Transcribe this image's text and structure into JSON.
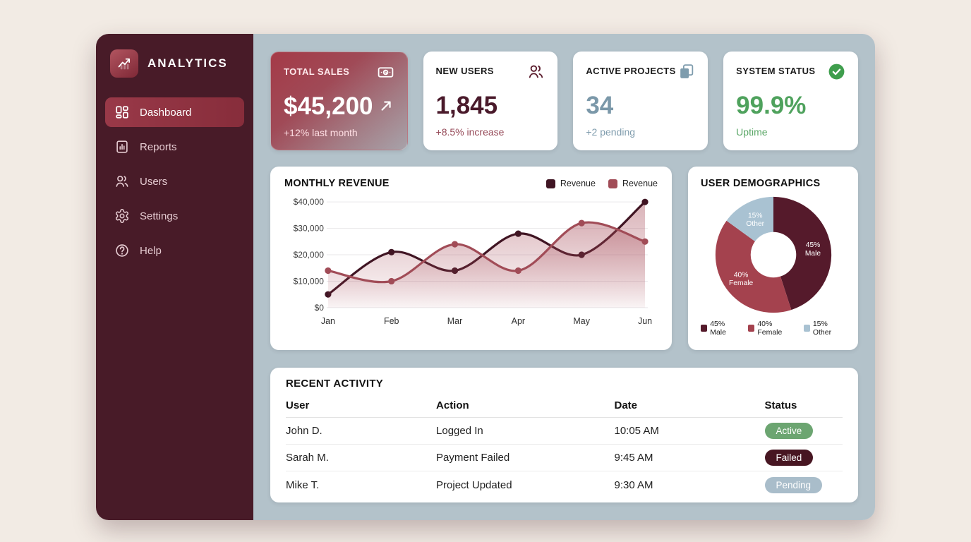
{
  "app_title": "ANALYTICS",
  "sidebar": {
    "items": [
      {
        "label": "Dashboard",
        "icon": "dashboard-icon",
        "active": true
      },
      {
        "label": "Reports",
        "icon": "reports-icon",
        "active": false
      },
      {
        "label": "Users",
        "icon": "users-icon",
        "active": false
      },
      {
        "label": "Settings",
        "icon": "settings-icon",
        "active": false
      },
      {
        "label": "Help",
        "icon": "help-icon",
        "active": false
      }
    ]
  },
  "stats": [
    {
      "title": "TOTAL SALES",
      "value": "$45,200",
      "sub": "+12% last month",
      "icon": "banknote-icon",
      "variant": "highlight",
      "trend_icon": "trend-up-icon"
    },
    {
      "title": "NEW USERS",
      "value": "1,845",
      "sub": "+8.5% increase",
      "icon": "people-icon",
      "variant": "maroon"
    },
    {
      "title": "ACTIVE PROJECTS",
      "value": "34",
      "sub": "+2 pending",
      "icon": "copy-icon",
      "variant": "steel"
    },
    {
      "title": "SYSTEM STATUS",
      "value": "99.9%",
      "sub": "Uptime",
      "icon": "check-circle-icon",
      "variant": "green"
    }
  ],
  "chart_data": [
    {
      "type": "line",
      "title": "MONTHLY REVENUE",
      "categories": [
        "Jan",
        "Feb",
        "Mar",
        "Apr",
        "May",
        "Jun"
      ],
      "series": [
        {
          "name": "Revenue",
          "color": "#401523",
          "values": [
            5000,
            21000,
            14000,
            28000,
            20000,
            40000
          ]
        },
        {
          "name": "Revenue",
          "color": "#a14c57",
          "values": [
            14000,
            10000,
            24000,
            14000,
            32000,
            25000
          ]
        }
      ],
      "ylim": [
        0,
        40000
      ],
      "yticks": [
        0,
        10000,
        20000,
        30000,
        40000
      ],
      "ytick_labels": [
        "$0",
        "$10,000",
        "$20,000",
        "$30,000",
        "$40,000"
      ],
      "xlabel": "",
      "ylabel": "",
      "grid": true,
      "area_fill": true,
      "legend_position": "top-right"
    },
    {
      "type": "pie",
      "title": "USER DEMOGRAPHICS",
      "donut": true,
      "slices": [
        {
          "label": "Male",
          "pct": 45,
          "color": "#551a2b"
        },
        {
          "label": "Female",
          "pct": 40,
          "color": "#a4424e"
        },
        {
          "label": "Other",
          "pct": 15,
          "color": "#a9c2d2"
        }
      ],
      "legend": [
        "45% Male",
        "40% Female",
        "15% Other"
      ],
      "legend_position": "bottom"
    }
  ],
  "activity": {
    "title": "RECENT ACTIVITY",
    "columns": [
      "User",
      "Action",
      "Date",
      "Status"
    ],
    "rows": [
      {
        "user": "John D.",
        "action": "Logged In",
        "date": "10:05 AM",
        "status": "Active",
        "status_color": "#6ca571"
      },
      {
        "user": "Sarah M.",
        "action": "Payment Failed",
        "date": "9:45 AM",
        "status": "Failed",
        "status_color": "#471622"
      },
      {
        "user": "Mike T.",
        "action": "Project Updated",
        "date": "9:30 AM",
        "status": "Pending",
        "status_color": "#a9bdca"
      }
    ]
  },
  "colors": {
    "page_bg": "#f2ebe4",
    "sidebar_bg": "#481b28",
    "sidebar_active_bg": "#903442",
    "main_bg": "#b3c2ca",
    "card_bg": "#ffffff",
    "accent_maroon": "#4a1a2b",
    "accent_red": "#a4424e",
    "accent_steel": "#7b98a9",
    "accent_green": "#4fa25d",
    "status_active": "#6ca571",
    "status_failed": "#471622",
    "status_pending": "#a9bdca"
  }
}
